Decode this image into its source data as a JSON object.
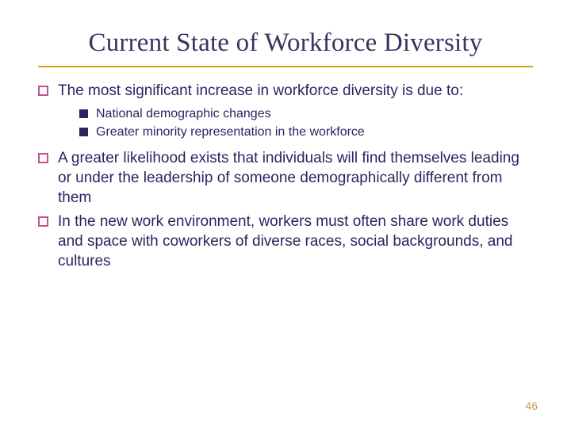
{
  "title": "Current State of Workforce Diversity",
  "bullets": [
    {
      "text": "The most significant increase in workforce diversity is due to:",
      "sub": [
        {
          "text": "National demographic changes"
        },
        {
          "text": "Greater minority representation in the workforce"
        }
      ]
    },
    {
      "text": "A greater likelihood exists that individuals will find themselves leading or under the leadership of someone demographically different from them"
    },
    {
      "text": "In the new work environment, workers must often share work duties and space with coworkers of diverse races, social backgrounds, and cultures"
    }
  ],
  "page_number": "46",
  "colors": {
    "title_text": "#3b3262",
    "title_underline": "#d4a017",
    "body_text": "#2a2461",
    "outline_bullet_border": "#c94f8e",
    "filled_bullet": "#2a2461",
    "page_number": "#c9974a",
    "background": "#ffffff"
  },
  "typography": {
    "title_font": "Georgia serif",
    "title_size_pt": 25,
    "body_font": "Verdana sans-serif",
    "body_size_pt": 14,
    "sub_size_pt": 12
  }
}
